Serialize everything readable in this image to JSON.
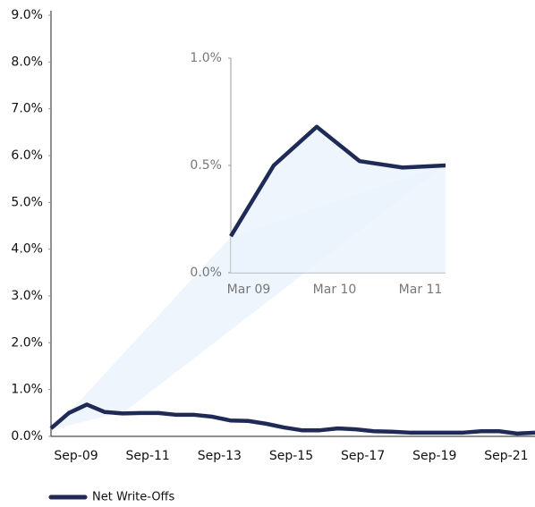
{
  "chart_data": [
    {
      "type": "line",
      "categories": [
        null,
        "Sep-09",
        null,
        null,
        null,
        "Sep-11",
        null,
        null,
        null,
        "Sep-13",
        null,
        null,
        null,
        "Sep-15",
        null,
        null,
        null,
        "Sep-17",
        null,
        null,
        null,
        "Sep-19",
        null,
        null,
        null,
        "Sep-21",
        null,
        null
      ],
      "series": [
        {
          "name": "Net Write-Offs",
          "color": "#1f2a56",
          "values": [
            0.17,
            0.5,
            0.68,
            0.52,
            0.49,
            0.5,
            0.5,
            0.46,
            0.46,
            0.42,
            0.34,
            0.33,
            0.27,
            0.19,
            0.13,
            0.13,
            0.17,
            0.15,
            0.11,
            0.1,
            0.08,
            0.08,
            0.08,
            0.08,
            0.11,
            0.11,
            0.06,
            0.08
          ]
        }
      ],
      "ylim": [
        0,
        9
      ],
      "yticks": [
        {
          "value": 0,
          "label": "0.0%"
        },
        {
          "value": 1,
          "label": "1.0%"
        },
        {
          "value": 2,
          "label": "2.0%"
        },
        {
          "value": 3,
          "label": "3.0%"
        },
        {
          "value": 4,
          "label": "4.0%"
        },
        {
          "value": 5,
          "label": "5.0%"
        },
        {
          "value": 6,
          "label": "6.0%"
        },
        {
          "value": 7,
          "label": "7.0%"
        },
        {
          "value": 8,
          "label": "8.0%"
        },
        {
          "value": 9,
          "label": "9.0%"
        }
      ],
      "legend": "bottom-left"
    },
    {
      "type": "line",
      "categories": [
        "Mar 09",
        null,
        "Mar 10",
        null,
        "Mar 11",
        null
      ],
      "values": [
        0.17,
        0.5,
        0.68,
        0.52,
        0.49,
        0.5
      ],
      "color": "#1f2a56",
      "ylim": [
        0,
        1
      ],
      "yticks": [
        {
          "value": 0,
          "label": "0.0%"
        },
        {
          "value": 0.5,
          "label": "0.5%"
        },
        {
          "value": 1,
          "label": "1.0%"
        }
      ]
    }
  ]
}
